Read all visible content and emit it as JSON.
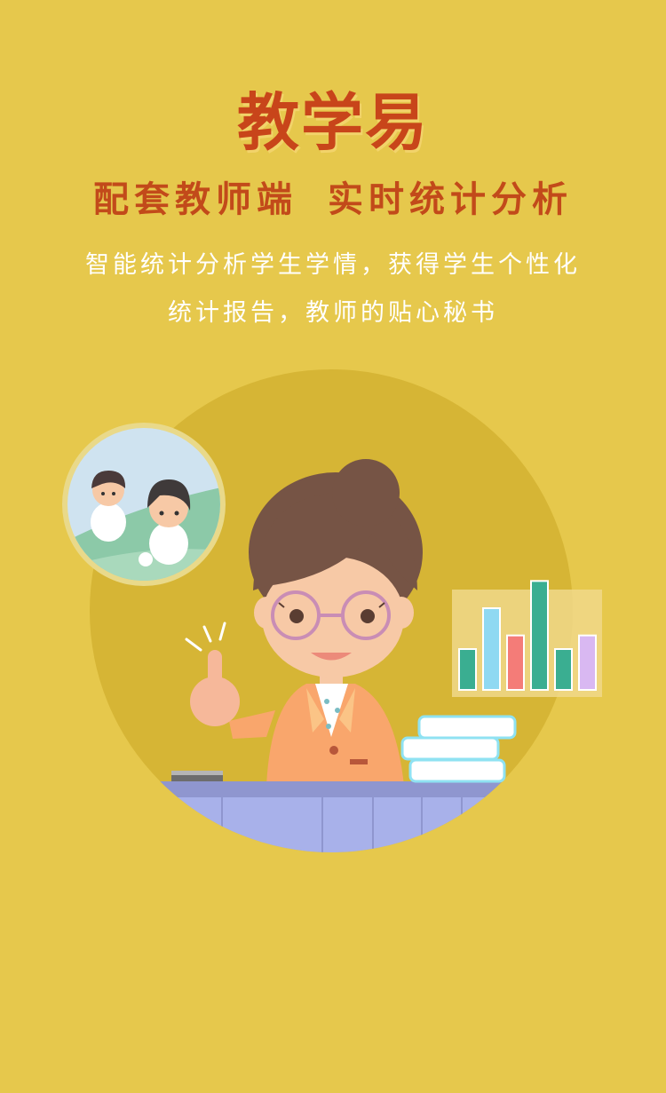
{
  "header": {
    "title": "教学易",
    "subtitle": "配套教师端 实时统计分析"
  },
  "description": {
    "line1": "智能统计分析学生学情，获得学生个性化",
    "line2": "统计报告，教师的贴心秘书"
  },
  "colors": {
    "background": "#E6C84C",
    "title": "#C8451A",
    "circle": "#D6B535"
  },
  "chart_data": {
    "type": "bar",
    "categories": [
      "",
      "",
      "",
      "",
      "",
      ""
    ],
    "values": [
      3,
      6,
      4,
      8,
      3,
      4
    ],
    "colors": [
      "#3AAE91",
      "#8FD9F2",
      "#F47C78",
      "#3AAE91",
      "#3AAE91",
      "#D9B8F2"
    ],
    "ylim": [
      0,
      9
    ]
  }
}
